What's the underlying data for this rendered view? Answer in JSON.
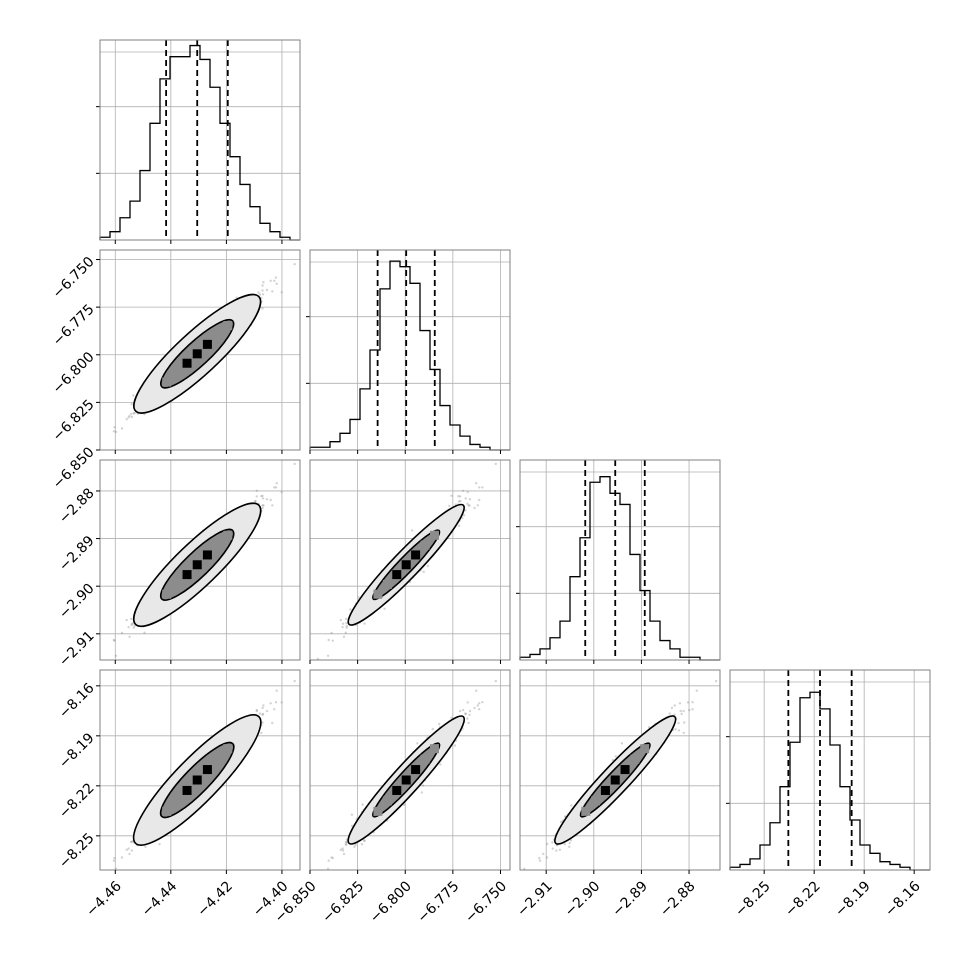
{
  "chart_data": {
    "type": "corner",
    "variables": [
      {
        "lim": [
          -4.4655,
          -4.3935
        ],
        "ticks": [
          -4.46,
          -4.44,
          -4.42,
          -4.4
        ],
        "tick_labels": [
          "−4.46",
          "−4.44",
          "−4.42",
          "−4.40"
        ],
        "quantiles": [
          -4.4417,
          -4.4305,
          -4.4195
        ],
        "hist": [
          1,
          3,
          8,
          14,
          25,
          42,
          58,
          66,
          66,
          70,
          65,
          55,
          42,
          30,
          20,
          12,
          6,
          3,
          1,
          0
        ]
      },
      {
        "lim": [
          -6.85,
          -6.745
        ],
        "ticks": [
          -6.85,
          -6.825,
          -6.8,
          -6.775,
          -6.75
        ],
        "tick_labels": [
          "−6.850",
          "−6.825",
          "−6.800",
          "−6.775",
          "−6.750"
        ],
        "quantiles": [
          -6.8145,
          -6.7995,
          -6.7845
        ],
        "hist": [
          1,
          1,
          3,
          6,
          11,
          22,
          36,
          58,
          68,
          66,
          60,
          43,
          29,
          16,
          9,
          5,
          2,
          1,
          0,
          0
        ]
      },
      {
        "lim": [
          -2.9155,
          -2.8735
        ],
        "ticks": [
          -2.91,
          -2.9,
          -2.89,
          -2.88
        ],
        "tick_labels": [
          "−2.91",
          "−2.90",
          "−2.89",
          "−2.88"
        ],
        "quantiles": [
          -2.9018,
          -2.8955,
          -2.8893
        ],
        "hist": [
          1,
          2,
          4,
          8,
          14,
          30,
          44,
          64,
          66,
          60,
          56,
          38,
          25,
          14,
          7,
          4,
          1,
          1,
          0,
          0
        ]
      },
      {
        "lim": [
          -8.2705,
          -8.1505
        ],
        "ticks": [
          -8.25,
          -8.22,
          -8.19,
          -8.16
        ],
        "tick_labels": [
          "−8.25",
          "−8.22",
          "−8.19",
          "−8.16"
        ],
        "quantiles": [
          -8.2355,
          -8.2165,
          -8.1975
        ],
        "hist": [
          1,
          2,
          4,
          9,
          17,
          30,
          46,
          62,
          64,
          58,
          45,
          30,
          18,
          9,
          6,
          3,
          2,
          1,
          0,
          0
        ]
      }
    ],
    "hist_ylim": [
      0,
      72
    ],
    "hist_yticks": [
      0,
      24,
      48
    ],
    "grid": true,
    "colors": {
      "line": "#000000",
      "grid": "#b0b0b0",
      "frame": "#808080",
      "point": "#808080",
      "density_light": "#8c8c8c",
      "density_dark": "#000000"
    }
  }
}
